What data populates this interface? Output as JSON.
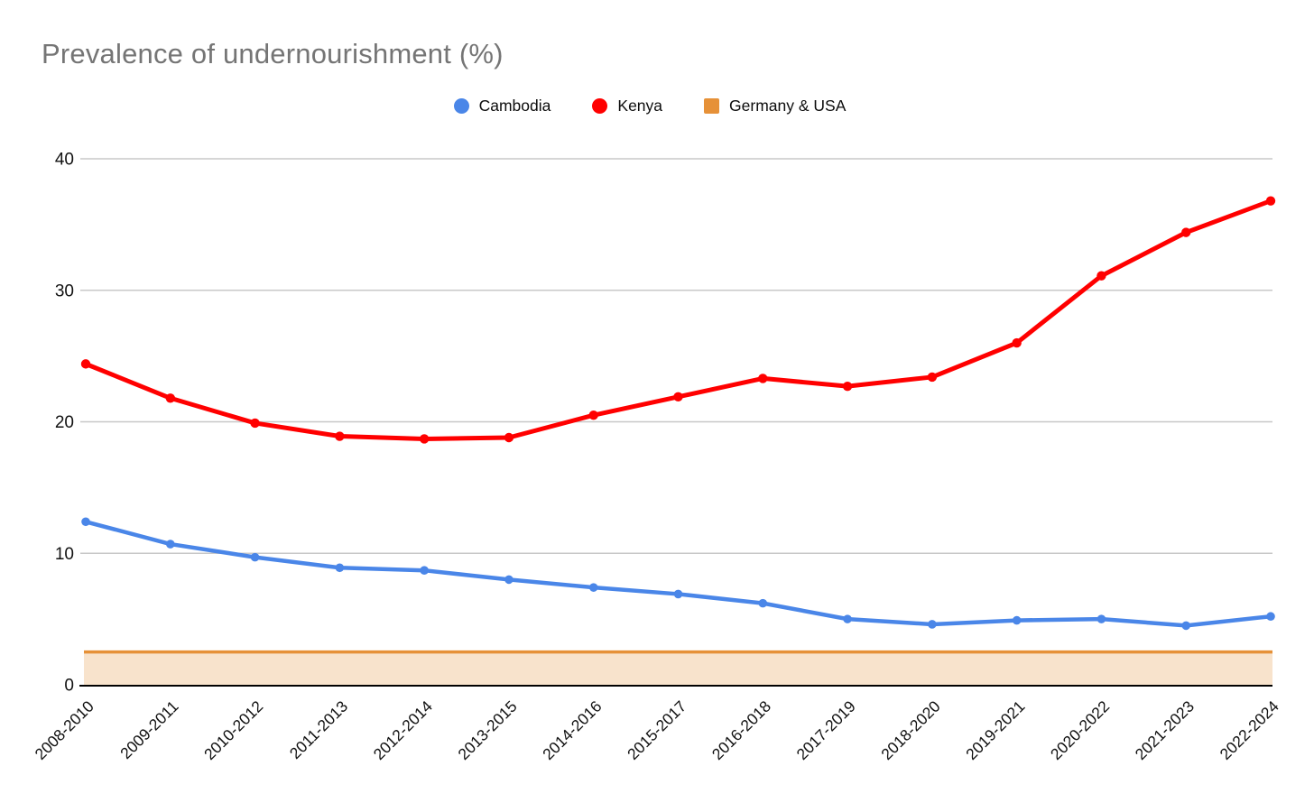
{
  "title": "Prevalence of undernourishment (%)",
  "legend": {
    "items": [
      {
        "label": "Cambodia",
        "color": "#4a86e8",
        "shape": "circle"
      },
      {
        "label": "Kenya",
        "color": "#ff0000",
        "shape": "circle"
      },
      {
        "label": "Germany & USA",
        "color": "#e69138",
        "shape": "square"
      }
    ]
  },
  "chart_data": {
    "type": "line",
    "title": "Prevalence of undernourishment (%)",
    "categories": [
      "2008-2010",
      "2009-2011",
      "2010-2012",
      "2011-2013",
      "2012-2014",
      "2013-2015",
      "2014-2016",
      "2015-2017",
      "2016-2018",
      "2017-2019",
      "2018-2020",
      "2019-2021",
      "2020-2022",
      "2021-2023",
      "2022-2024"
    ],
    "series": [
      {
        "name": "Cambodia",
        "color": "#4a86e8",
        "point_shape": "circle",
        "values": [
          12.4,
          10.7,
          9.7,
          8.9,
          8.7,
          8.0,
          7.4,
          6.9,
          6.2,
          5.0,
          4.6,
          4.9,
          5.0,
          4.5,
          5.2
        ]
      },
      {
        "name": "Kenya",
        "color": "#ff0000",
        "point_shape": "circle",
        "values": [
          24.4,
          21.8,
          19.9,
          18.9,
          18.7,
          18.8,
          20.5,
          21.9,
          23.3,
          22.7,
          23.4,
          26.0,
          31.1,
          34.4,
          36.8
        ]
      }
    ],
    "band": {
      "name": "Germany & USA",
      "from": 0,
      "to": 2.5,
      "line_color": "#e69138",
      "fill_color": "#f8e3cc"
    },
    "xlabel": "",
    "ylabel": "",
    "ylim": [
      0,
      40
    ],
    "yticks": [
      0,
      10,
      20,
      30,
      40
    ],
    "grid": true,
    "legend_position": "top"
  },
  "colors": {
    "title_text": "#757575",
    "tick_text": "#111111",
    "grid": "#c8c8c8",
    "axis": "#000000",
    "background": "#ffffff"
  }
}
